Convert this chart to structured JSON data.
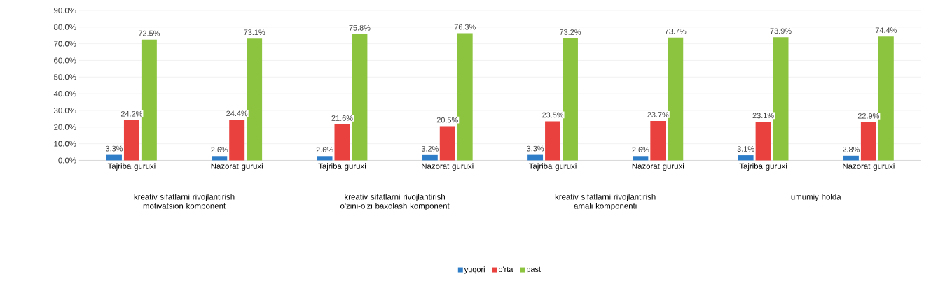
{
  "chart_data": {
    "type": "bar",
    "categories": [
      "Tajriba guruxi",
      "Nazorat guruxi",
      "Tajriba guruxi",
      "Nazorat guruxi",
      "Tajriba guruxi",
      "Nazorat guruxi",
      "Tajriba guruxi",
      "Nazorat guruxi"
    ],
    "series": [
      {
        "name": "yuqori",
        "color": "#2e7dc9",
        "values": [
          3.3,
          2.6,
          2.6,
          3.2,
          3.3,
          2.6,
          3.1,
          2.8
        ],
        "value_labels": [
          "3.3%",
          "2.6%",
          "2.6%",
          "3.2%",
          "3.3%",
          "2.6%",
          "3.1%",
          "2.8%"
        ]
      },
      {
        "name": "o'rta",
        "color": "#e8413e",
        "values": [
          24.2,
          24.4,
          21.6,
          20.5,
          23.5,
          23.7,
          23.1,
          22.9
        ],
        "value_labels": [
          "24.2%",
          "24.4%",
          "21.6%",
          "20.5%",
          "23.5%",
          "23.7%",
          "23.1%",
          "22.9%"
        ]
      },
      {
        "name": "past",
        "color": "#8cc43f",
        "values": [
          72.5,
          73.1,
          75.8,
          76.3,
          73.2,
          73.7,
          73.9,
          74.4
        ],
        "value_labels": [
          "72.5%",
          "73.1%",
          "75.8%",
          "76.3%",
          "73.2%",
          "73.7%",
          "73.9%",
          "74.4%"
        ]
      }
    ],
    "ylim": [
      0,
      90
    ],
    "yticks": [
      {
        "value": 0,
        "label": "0.0%"
      },
      {
        "value": 10,
        "label": "10.0%"
      },
      {
        "value": 20,
        "label": "20.0%"
      },
      {
        "value": 30,
        "label": "30.0%"
      },
      {
        "value": 40,
        "label": "40.0%"
      },
      {
        "value": 50,
        "label": "50.0%"
      },
      {
        "value": 60,
        "label": "60.0%"
      },
      {
        "value": 70,
        "label": "70.0%"
      },
      {
        "value": 80,
        "label": "80.0%"
      },
      {
        "value": 90,
        "label": "90.0%"
      }
    ],
    "annotations": [
      "kreativ sifatlarni rivojlantirish motivatsion komponent",
      "kreativ sifatlarni rivojlantirish o'zini-o'zi baxolash komponent",
      "kreativ sifatlarni rivojlantirish amali komponenti",
      "umumiy holda"
    ],
    "grid": "y",
    "legend": "bottom"
  }
}
